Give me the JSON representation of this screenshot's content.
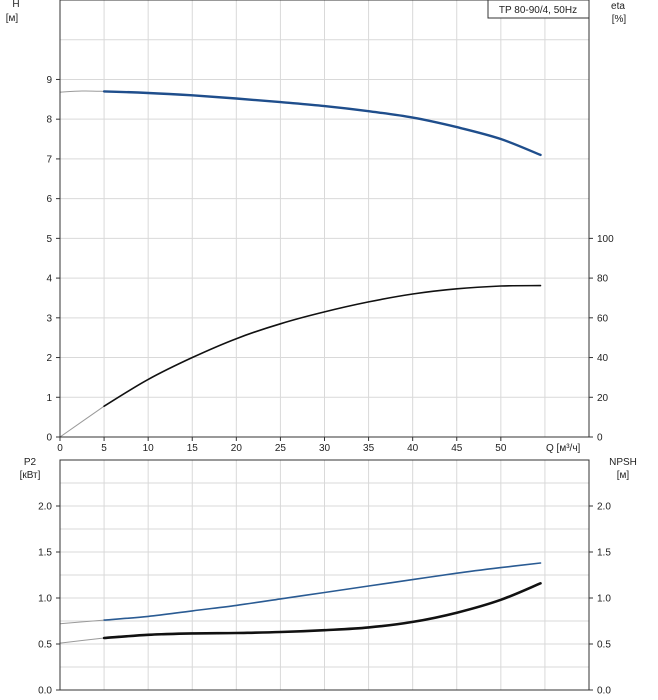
{
  "chart_data": [
    {
      "type": "line",
      "panel": "upper",
      "model_label": "TP 80-90/4, 50Hz",
      "y_left_title": "H",
      "y_left_unit": "[м]",
      "y_right_title": "eta",
      "y_right_unit": "[%]",
      "x_label": "Q [м³/ч]",
      "xlim": [
        0,
        60
      ],
      "ylim_left": [
        0,
        11
      ],
      "ylim_right": [
        0,
        220
      ],
      "x_ticks": [
        "0",
        "5",
        "10",
        "15",
        "20",
        "25",
        "30",
        "35",
        "40",
        "45",
        "50"
      ],
      "y_left_ticks": [
        "0",
        "1",
        "2",
        "3",
        "4",
        "5",
        "6",
        "7",
        "8",
        "9"
      ],
      "y_right_ticks": [
        "0",
        "20",
        "40",
        "60",
        "80",
        "100"
      ],
      "grid": true,
      "series": [
        {
          "axis": "left",
          "color": "#1f4e8c",
          "extension": {
            "x": [
              0,
              2.5,
              5
            ],
            "y": [
              8.68,
              8.71,
              8.7
            ]
          },
          "x": [
            5,
            10,
            15,
            20,
            25,
            30,
            35,
            40,
            45,
            50,
            54.5
          ],
          "y": [
            8.7,
            8.66,
            8.6,
            8.52,
            8.43,
            8.33,
            8.2,
            8.04,
            7.8,
            7.5,
            7.1
          ]
        },
        {
          "axis": "right",
          "color": "#111111",
          "extension": {
            "x": [
              0,
              5
            ],
            "y": [
              0,
              15.5
            ]
          },
          "x": [
            5,
            10,
            15,
            20,
            25,
            30,
            35,
            40,
            45,
            50,
            54.5
          ],
          "y": [
            15.5,
            29,
            40,
            49.5,
            57,
            63,
            68,
            72,
            74.6,
            76,
            76.2
          ]
        }
      ]
    },
    {
      "type": "line",
      "panel": "lower",
      "y_left_title": "P2",
      "y_left_unit": "[кВт]",
      "y_right_title": "NPSH",
      "y_right_unit": "[м]",
      "xlim": [
        0,
        60
      ],
      "ylim_left": [
        0,
        2.5
      ],
      "ylim_right": [
        0,
        2.5
      ],
      "y_left_ticks": [
        "0.0",
        "0.5",
        "1.0",
        "1.5",
        "2.0"
      ],
      "y_right_ticks": [
        "0.0",
        "0.5",
        "1.0",
        "1.5",
        "2.0"
      ],
      "grid": true,
      "series": [
        {
          "axis": "left",
          "color": "#2a5b93",
          "extension": {
            "x": [
              0,
              5
            ],
            "y": [
              0.72,
              0.76
            ]
          },
          "x": [
            5,
            10,
            15,
            20,
            25,
            30,
            35,
            40,
            45,
            50,
            54.5
          ],
          "y": [
            0.76,
            0.8,
            0.86,
            0.92,
            0.99,
            1.06,
            1.13,
            1.2,
            1.27,
            1.33,
            1.38
          ]
        },
        {
          "axis": "right",
          "color": "#111111",
          "extension": {
            "x": [
              0,
              5
            ],
            "y": [
              0.51,
              0.565
            ]
          },
          "x": [
            5,
            10,
            15,
            20,
            25,
            30,
            35,
            40,
            45,
            50,
            54.5
          ],
          "y": [
            0.565,
            0.6,
            0.615,
            0.62,
            0.63,
            0.65,
            0.68,
            0.74,
            0.84,
            0.98,
            1.16
          ]
        }
      ]
    }
  ]
}
